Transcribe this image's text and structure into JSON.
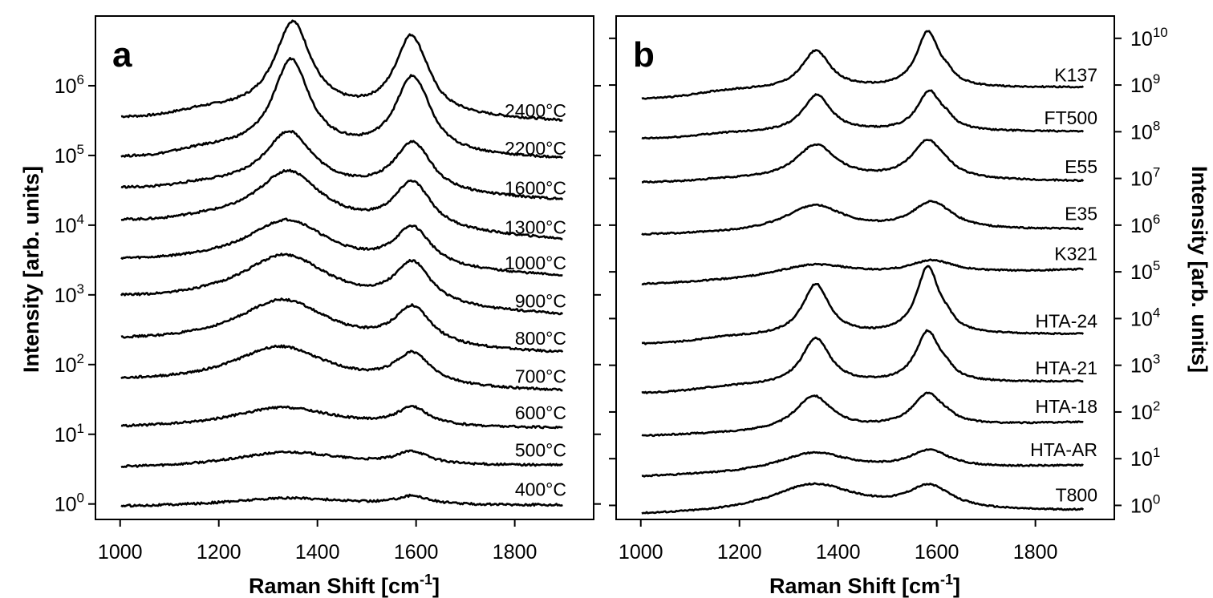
{
  "chart_data": [
    {
      "type": "line",
      "panel_label": "a",
      "xlabel": "Raman Shift [cm",
      "xlabel_sup": "-1",
      "xlabel_end": "]",
      "ylabel": "Intensity [arb. units]",
      "yaxis_side": "left",
      "yscale": "log",
      "xlim": [
        950,
        1960
      ],
      "ylim": [
        0.6,
        10000000
      ],
      "x_ticks": [
        1000,
        1200,
        1400,
        1600,
        1800
      ],
      "x_tick_labels": [
        "1000",
        "1200",
        "1400",
        "1600",
        "1800"
      ],
      "y_ticks": [
        1,
        10,
        100,
        1000,
        10000,
        100000,
        1000000
      ],
      "y_tick_labels": [
        {
          "base": "10",
          "exp": "0"
        },
        {
          "base": "10",
          "exp": "1"
        },
        {
          "base": "10",
          "exp": "2"
        },
        {
          "base": "10",
          "exp": "3"
        },
        {
          "base": "10",
          "exp": "4"
        },
        {
          "base": "10",
          "exp": "5"
        },
        {
          "base": "10",
          "exp": "6"
        }
      ],
      "series": [
        {
          "name": "2400°C",
          "baseline": 340000,
          "end": 260000,
          "shoulder": 0.17,
          "d_pos": 1350,
          "d_amp": 1.28,
          "d_width": 45,
          "g_pos": 1590,
          "g_amp": 1.12,
          "g_width": 40,
          "d2_amp": 0.15
        },
        {
          "name": "2200°C",
          "baseline": 92000,
          "end": 75000,
          "shoulder": 0.17,
          "d_pos": 1347,
          "d_amp": 1.3,
          "d_width": 45,
          "g_pos": 1592,
          "g_amp": 1.08,
          "g_width": 42,
          "d2_amp": 0.18
        },
        {
          "name": "1600°C",
          "baseline": 33000,
          "end": 20000,
          "shoulder": 0.12,
          "d_pos": 1342,
          "d_amp": 0.8,
          "d_width": 60,
          "g_pos": 1592,
          "g_amp": 0.7,
          "g_width": 45,
          "d2_amp": 0.1
        },
        {
          "name": "1300°C",
          "baseline": 11000,
          "end": 5500,
          "shoulder": 0.1,
          "d_pos": 1342,
          "d_amp": 0.76,
          "d_width": 80,
          "g_pos": 1592,
          "g_amp": 0.66,
          "g_width": 45,
          "d2_amp": 0.05
        },
        {
          "name": "1000°C",
          "baseline": 3000,
          "end": 1700,
          "shoulder": 0.05,
          "d_pos": 1340,
          "d_amp": 0.64,
          "d_width": 100,
          "g_pos": 1593,
          "g_amp": 0.56,
          "g_width": 45,
          "d2_amp": 0.0
        },
        {
          "name": "900°C",
          "baseline": 850,
          "end": 480,
          "shoulder": 0.03,
          "d_pos": 1335,
          "d_amp": 0.7,
          "d_width": 110,
          "g_pos": 1593,
          "g_amp": 0.6,
          "g_width": 45,
          "d2_amp": 0.0
        },
        {
          "name": "800°C",
          "baseline": 210,
          "end": 140,
          "shoulder": 0.0,
          "d_pos": 1330,
          "d_amp": 0.66,
          "d_width": 115,
          "g_pos": 1593,
          "g_amp": 0.54,
          "g_width": 45,
          "d2_amp": 0.0
        },
        {
          "name": "700°C",
          "baseline": 55,
          "end": 40,
          "shoulder": 0.0,
          "d_pos": 1325,
          "d_amp": 0.56,
          "d_width": 120,
          "g_pos": 1593,
          "g_amp": 0.44,
          "g_width": 45,
          "d2_amp": 0.0
        },
        {
          "name": "600°C",
          "baseline": 12,
          "end": 12,
          "shoulder": 0.0,
          "d_pos": 1330,
          "d_amp": 0.3,
          "d_width": 130,
          "g_pos": 1593,
          "g_amp": 0.26,
          "g_width": 40,
          "d2_amp": 0.0
        },
        {
          "name": "500°C",
          "baseline": 3.2,
          "end": 3.5,
          "shoulder": 0.0,
          "d_pos": 1340,
          "d_amp": 0.22,
          "d_width": 140,
          "g_pos": 1593,
          "g_amp": 0.18,
          "g_width": 40,
          "d2_amp": 0.0
        },
        {
          "name": "400°C",
          "baseline": 0.9,
          "end": 0.95,
          "shoulder": 0.0,
          "d_pos": 1340,
          "d_amp": 0.12,
          "d_width": 150,
          "g_pos": 1593,
          "g_amp": 0.12,
          "g_width": 40,
          "d2_amp": 0.0
        }
      ]
    },
    {
      "type": "line",
      "panel_label": "b",
      "xlabel": "Raman Shift [cm",
      "xlabel_sup": "-1",
      "xlabel_end": "]",
      "ylabel": "Intensity [arb. units]",
      "yaxis_side": "right",
      "yscale": "log",
      "xlim": [
        950,
        1960
      ],
      "ylim": [
        0.5,
        30000000000
      ],
      "x_ticks": [
        1000,
        1200,
        1400,
        1600,
        1800
      ],
      "x_tick_labels": [
        "1000",
        "1200",
        "1400",
        "1600",
        "1800"
      ],
      "y_ticks": [
        1,
        10,
        100,
        1000,
        10000,
        100000,
        1000000,
        10000000,
        100000000,
        1000000000,
        10000000000
      ],
      "y_tick_labels": [
        {
          "base": "10",
          "exp": "0"
        },
        {
          "base": "10",
          "exp": "1"
        },
        {
          "base": "10",
          "exp": "2"
        },
        {
          "base": "10",
          "exp": "3"
        },
        {
          "base": "10",
          "exp": "4"
        },
        {
          "base": "10",
          "exp": "5"
        },
        {
          "base": "10",
          "exp": "6"
        },
        {
          "base": "10",
          "exp": "7"
        },
        {
          "base": "10",
          "exp": "8"
        },
        {
          "base": "10",
          "exp": "9"
        },
        {
          "base": "10",
          "exp": "10"
        }
      ],
      "series": [
        {
          "name": "K137",
          "baseline": 500000000,
          "end": 750000000,
          "shoulder": 0.18,
          "d_pos": 1355,
          "d_amp": 0.82,
          "d_width": 35,
          "g_pos": 1582,
          "g_amp": 1.2,
          "g_width": 28,
          "d2_amp": 0.4
        },
        {
          "name": "FT500",
          "baseline": 70000000,
          "end": 90000000,
          "shoulder": 0.12,
          "d_pos": 1357,
          "d_amp": 0.8,
          "d_width": 35,
          "g_pos": 1585,
          "g_amp": 0.86,
          "g_width": 30,
          "d2_amp": 0.35
        },
        {
          "name": "E55",
          "baseline": 8000000,
          "end": 8000000,
          "shoulder": 0.08,
          "d_pos": 1355,
          "d_amp": 0.74,
          "d_width": 50,
          "g_pos": 1582,
          "g_amp": 0.84,
          "g_width": 40,
          "d2_amp": 0.15
        },
        {
          "name": "E35",
          "baseline": 600000,
          "end": 800000,
          "shoulder": 0.0,
          "d_pos": 1352,
          "d_amp": 0.58,
          "d_width": 75,
          "g_pos": 1590,
          "g_amp": 0.6,
          "g_width": 50,
          "d2_amp": 0.0
        },
        {
          "name": "K321",
          "baseline": 52000,
          "end": 110000,
          "shoulder": 0.0,
          "d_pos": 1350,
          "d_amp": 0.3,
          "d_width": 100,
          "g_pos": 1590,
          "g_amp": 0.28,
          "g_width": 55,
          "d2_amp": 0.0
        },
        {
          "name": "HTA-24",
          "baseline": 2800,
          "end": 4000,
          "shoulder": 0.15,
          "d_pos": 1355,
          "d_amp": 1.1,
          "d_width": 33,
          "g_pos": 1582,
          "g_amp": 1.45,
          "g_width": 28,
          "d2_amp": 0.4
        },
        {
          "name": "HTA-21",
          "baseline": 250,
          "end": 400,
          "shoulder": 0.12,
          "d_pos": 1355,
          "d_amp": 1.0,
          "d_width": 35,
          "g_pos": 1582,
          "g_amp": 1.1,
          "g_width": 30,
          "d2_amp": 0.35
        },
        {
          "name": "HTA-18",
          "baseline": 30,
          "end": 60,
          "shoulder": 0.0,
          "d_pos": 1350,
          "d_amp": 0.74,
          "d_width": 45,
          "g_pos": 1582,
          "g_amp": 0.7,
          "g_width": 38,
          "d2_amp": 0.15
        },
        {
          "name": "HTA-AR",
          "baseline": 4.0,
          "end": 7.0,
          "shoulder": 0.0,
          "d_pos": 1350,
          "d_amp": 0.42,
          "d_width": 90,
          "g_pos": 1585,
          "g_amp": 0.38,
          "g_width": 50,
          "d2_amp": 0.0
        },
        {
          "name": "T800",
          "baseline": 0.6,
          "end": 0.75,
          "shoulder": 0.0,
          "d_pos": 1350,
          "d_amp": 0.62,
          "d_width": 110,
          "g_pos": 1585,
          "g_amp": 0.5,
          "g_width": 55,
          "d2_amp": 0.0
        }
      ]
    }
  ]
}
